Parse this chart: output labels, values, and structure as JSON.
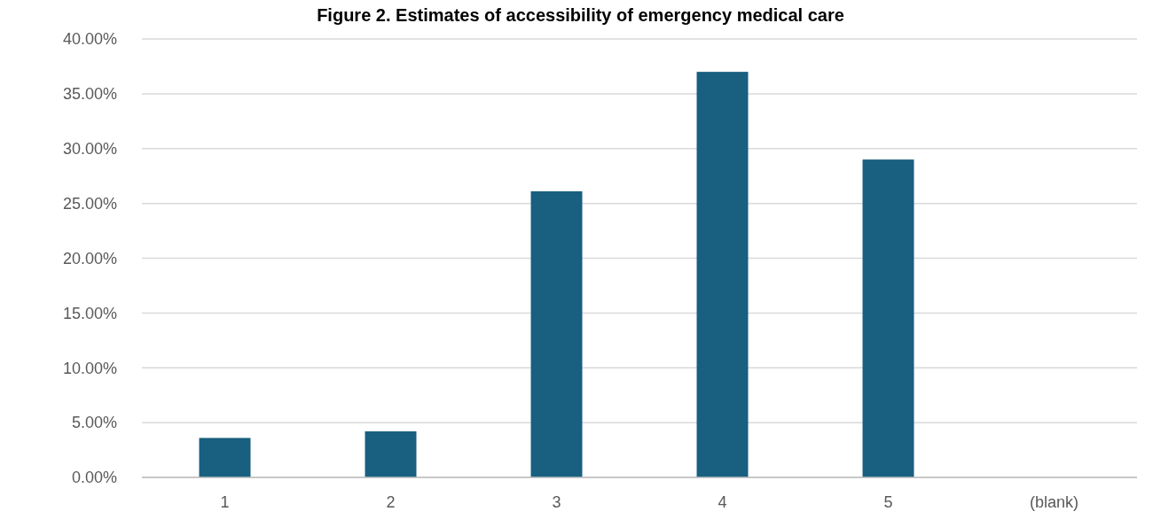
{
  "chart_data": {
    "type": "bar",
    "title": "Figure 2. Estimates of accessibility of emergency medical care",
    "categories": [
      "1",
      "2",
      "3",
      "4",
      "5",
      "(blank)"
    ],
    "values": [
      3.6,
      4.2,
      26.1,
      37.0,
      29.0,
      null
    ],
    "color": "#185f80",
    "ylim": [
      0,
      40
    ],
    "yticks": [
      {
        "value": 0,
        "label": "0.00%"
      },
      {
        "value": 5,
        "label": "5.00%"
      },
      {
        "value": 10,
        "label": "10.00%"
      },
      {
        "value": 15,
        "label": "15.00%"
      },
      {
        "value": 20,
        "label": "20.00%"
      },
      {
        "value": 25,
        "label": "25.00%"
      },
      {
        "value": 30,
        "label": "30.00%"
      },
      {
        "value": 35,
        "label": "35.00%"
      },
      {
        "value": 40,
        "label": "40.00%"
      }
    ],
    "grid": "y"
  }
}
